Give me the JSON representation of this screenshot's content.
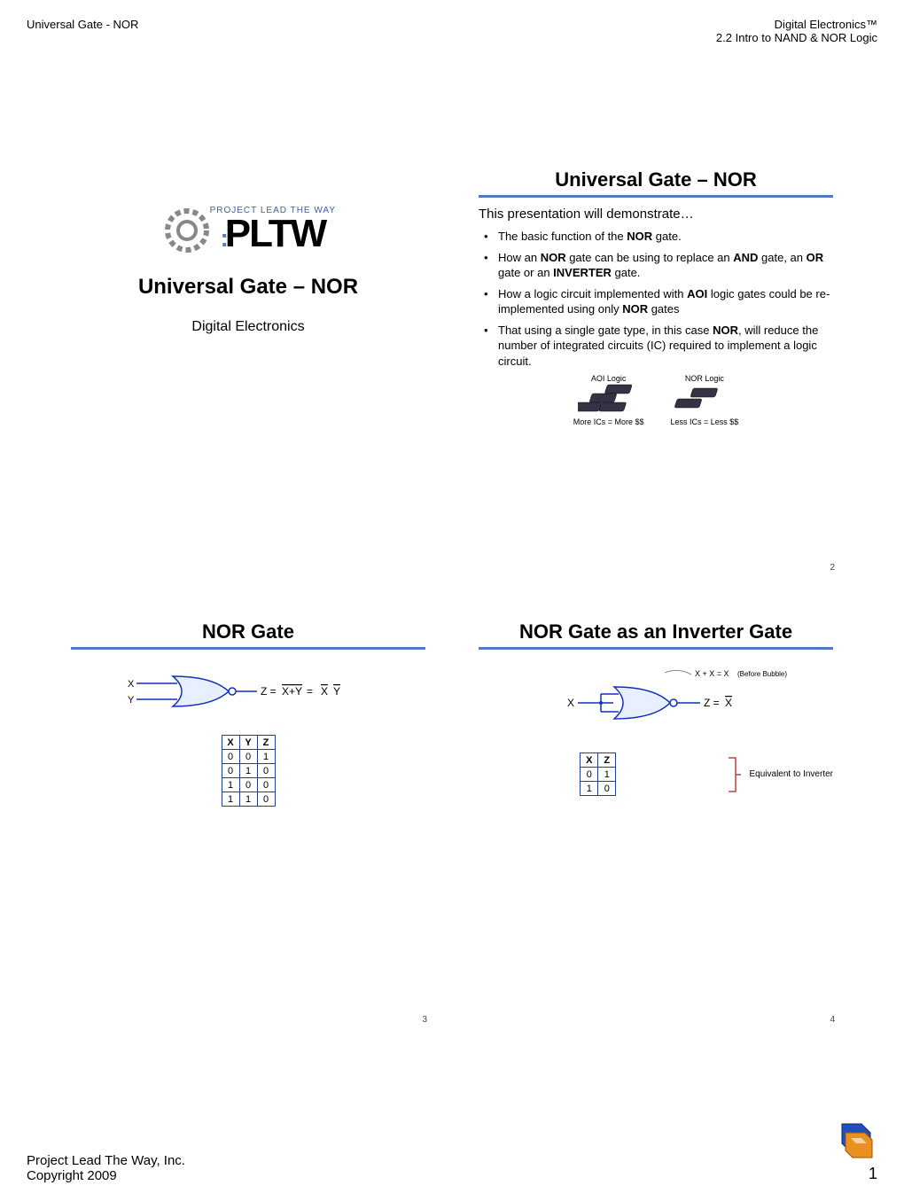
{
  "header": {
    "left": "Universal Gate - NOR",
    "right_line1": "Digital Electronics™",
    "right_line2": "2.2 Intro to NAND & NOR Logic"
  },
  "slide1": {
    "logo_lead": "PROJECT LEAD THE WAY",
    "logo_text": "PLTW",
    "title": "Universal Gate – NOR",
    "subtitle": "Digital Electronics"
  },
  "slide2": {
    "title": "Universal Gate – NOR",
    "intro": "This presentation will demonstrate…",
    "bullets": [
      "The basic function of the <b>NOR</b> gate.",
      "How an <b>NOR</b> gate can be using to replace an <b>AND</b> gate, an <b>OR</b> gate or an <b>INVERTER</b> gate.",
      "How a logic circuit implemented with <b>AOI</b> logic gates could be re-implemented using only <b>NOR</b> gates",
      "That using a single gate type, in this case <b>NOR</b>, will reduce the number of integrated circuits (IC) required to implement a logic circuit."
    ],
    "left_caption_top": "AOI Logic",
    "right_caption_top": "NOR Logic",
    "left_caption_bot": "More ICs = More $$",
    "right_caption_bot": "Less ICs = Less $$",
    "number": "2"
  },
  "slide3": {
    "title": "NOR Gate",
    "input_x": "X",
    "input_y": "Y",
    "equation_prefix": "Z = ",
    "equation_over1": "X+Y",
    "equation_eq": " = ",
    "equation_over2a": "X",
    "equation_space": "  ",
    "equation_over2b": "Y",
    "table": {
      "headers": [
        "X",
        "Y",
        "Z"
      ],
      "rows": [
        [
          "0",
          "0",
          "1"
        ],
        [
          "0",
          "1",
          "0"
        ],
        [
          "1",
          "0",
          "0"
        ],
        [
          "1",
          "1",
          "0"
        ]
      ]
    },
    "number": "3"
  },
  "slide4": {
    "title": "NOR Gate as an Inverter Gate",
    "bubble_note": "X + X = X (Before Bubble)",
    "input_x": "X",
    "equation_prefix": "Z = ",
    "equation_over": "X",
    "table": {
      "headers": [
        "X",
        "Z"
      ],
      "rows": [
        [
          "0",
          "1"
        ],
        [
          "1",
          "0"
        ]
      ]
    },
    "side_note": "Equivalent to Inverter",
    "number": "4"
  },
  "footer": {
    "line1": "Project Lead The Way, Inc.",
    "line2": "Copyright 2009",
    "page": "1"
  },
  "colors": {
    "accent": "#5578c4",
    "gate_outline": "#1030c0",
    "gate_fill": "#e8f0ff"
  }
}
